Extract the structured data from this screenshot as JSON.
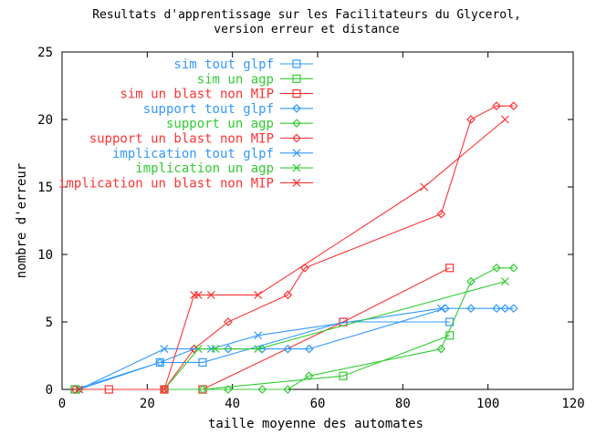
{
  "chart_data": {
    "type": "line",
    "title": [
      "Resultats d'apprentissage sur les Facilitateurs du Glycerol,",
      "version erreur et distance"
    ],
    "xlabel": "taille moyenne des automates",
    "ylabel": "nombre d'erreur",
    "xlim": [
      0,
      120
    ],
    "ylim": [
      0,
      25
    ],
    "xticks": [
      0,
      20,
      40,
      60,
      80,
      100,
      120
    ],
    "yticks": [
      0,
      5,
      10,
      15,
      20,
      25
    ],
    "grid": false,
    "legend_position": "top-left",
    "series": [
      {
        "name": "sim tout glpf",
        "color": "#3399ff",
        "marker": "square",
        "points": [
          [
            3,
            0
          ],
          [
            23,
            2
          ],
          [
            33,
            2
          ],
          [
            66,
            5
          ],
          [
            91,
            5
          ]
        ]
      },
      {
        "name": "sim un agp",
        "color": "#33cc33",
        "marker": "square",
        "points": [
          [
            3,
            0
          ],
          [
            24,
            0
          ],
          [
            33,
            0
          ],
          [
            66,
            1
          ],
          [
            91,
            4
          ]
        ]
      },
      {
        "name": "sim un blast non MIP",
        "color": "#ff3333",
        "marker": "square",
        "points": [
          [
            11,
            0
          ],
          [
            24,
            0
          ],
          [
            33,
            0
          ],
          [
            66,
            5
          ],
          [
            91,
            9
          ]
        ]
      },
      {
        "name": "support tout glpf",
        "color": "#3399ff",
        "marker": "diamond",
        "points": [
          [
            4,
            0
          ],
          [
            23,
            2
          ],
          [
            31,
            3
          ],
          [
            39,
            3
          ],
          [
            47,
            3
          ],
          [
            53,
            3
          ],
          [
            58,
            3
          ],
          [
            90,
            6
          ],
          [
            96,
            6
          ],
          [
            102,
            6
          ],
          [
            104,
            6
          ],
          [
            106,
            6
          ]
        ]
      },
      {
        "name": "support un agp",
        "color": "#33cc33",
        "marker": "diamond",
        "points": [
          [
            4,
            0
          ],
          [
            24,
            0
          ],
          [
            33,
            0
          ],
          [
            39,
            0
          ],
          [
            47,
            0
          ],
          [
            53,
            0
          ],
          [
            58,
            1
          ],
          [
            89,
            3
          ],
          [
            96,
            8
          ],
          [
            102,
            9
          ],
          [
            106,
            9
          ]
        ]
      },
      {
        "name": "support un blast non MIP",
        "color": "#ff3333",
        "marker": "diamond",
        "points": [
          [
            3,
            0
          ],
          [
            24,
            0
          ],
          [
            31,
            3
          ],
          [
            39,
            5
          ],
          [
            53,
            7
          ],
          [
            57,
            9
          ],
          [
            89,
            13
          ],
          [
            96,
            20
          ],
          [
            102,
            21
          ],
          [
            106,
            21
          ]
        ]
      },
      {
        "name": "implication tout glpf",
        "color": "#3399ff",
        "marker": "cross",
        "points": [
          [
            4,
            0
          ],
          [
            24,
            3
          ],
          [
            35,
            3
          ],
          [
            46,
            4
          ],
          [
            89,
            6
          ]
        ]
      },
      {
        "name": "implication un agp",
        "color": "#33cc33",
        "marker": "cross",
        "points": [
          [
            4,
            0
          ],
          [
            24,
            0
          ],
          [
            32,
            3
          ],
          [
            36,
            3
          ],
          [
            46,
            3
          ],
          [
            104,
            8
          ]
        ]
      },
      {
        "name": "implication un blast non MIP",
        "color": "#ff3333",
        "marker": "cross",
        "points": [
          [
            4,
            0
          ],
          [
            24,
            0
          ],
          [
            31,
            7
          ],
          [
            32,
            7
          ],
          [
            35,
            7
          ],
          [
            46,
            7
          ],
          [
            85,
            15
          ],
          [
            104,
            20
          ]
        ]
      }
    ]
  }
}
